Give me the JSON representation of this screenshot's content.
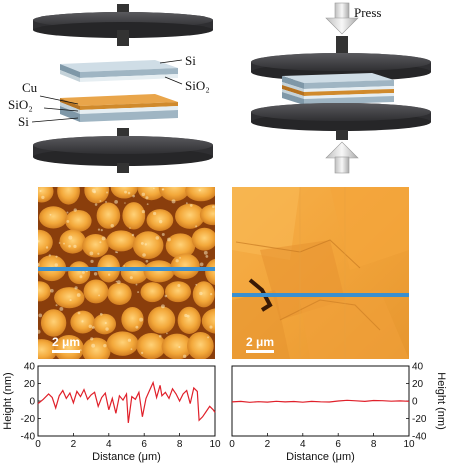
{
  "diagram": {
    "press_label": "Press",
    "labels_top_stack": {
      "si": "Si",
      "sio2": "SiO₂"
    },
    "labels_bottom_stack": {
      "cu": "Cu",
      "sio2": "SiO₂",
      "si": "Si"
    },
    "colors": {
      "plate": "#3a3a3c",
      "si": "#9fb5c3",
      "sio2": "#e6eef2",
      "cu": "#d08a2c"
    }
  },
  "afm": {
    "left_scale_bar": "2 μm",
    "right_scale_bar": "2 μm",
    "line_color": "#3a8fd0"
  },
  "chart_data": [
    {
      "type": "line",
      "xlabel": "Distance (μm)",
      "ylabel": "Height (nm)",
      "xlim": [
        0,
        10
      ],
      "ylim": [
        -40,
        40
      ],
      "xticks": [
        0,
        2,
        4,
        6,
        8,
        10
      ],
      "yticks": [
        40,
        20,
        0,
        -20,
        -40
      ],
      "yaxis_side": "left",
      "series": [
        {
          "color": "#e0202a",
          "x": [
            0,
            0.3,
            0.6,
            0.8,
            1.0,
            1.2,
            1.4,
            1.6,
            1.8,
            2.0,
            2.2,
            2.4,
            2.6,
            2.8,
            3.0,
            3.2,
            3.4,
            3.6,
            3.8,
            4.0,
            4.2,
            4.4,
            4.6,
            4.8,
            5.0,
            5.1,
            5.3,
            5.5,
            5.7,
            5.9,
            6.1,
            6.3,
            6.5,
            6.7,
            6.9,
            7.0,
            7.2,
            7.4,
            7.6,
            7.8,
            8.0,
            8.2,
            8.4,
            8.6,
            8.8,
            9.0,
            9.1,
            9.3,
            9.5,
            9.7,
            9.9,
            10.0
          ],
          "y": [
            -3,
            2,
            8,
            4,
            -8,
            6,
            12,
            3,
            9,
            -2,
            11,
            5,
            13,
            2,
            7,
            10,
            -6,
            4,
            9,
            -10,
            3,
            -14,
            6,
            1,
            8,
            -25,
            5,
            2,
            10,
            -18,
            3,
            12,
            21,
            4,
            18,
            6,
            10,
            3,
            14,
            8,
            0,
            8,
            12,
            -3,
            15,
            11,
            -22,
            -18,
            -12,
            -6,
            -10,
            -13
          ]
        }
      ]
    },
    {
      "type": "line",
      "xlabel": "Distance (μm)",
      "ylabel": "Height (nm)",
      "xlim": [
        0,
        10
      ],
      "ylim": [
        -40,
        40
      ],
      "xticks": [
        0,
        2,
        4,
        6,
        8,
        10
      ],
      "yticks": [
        40,
        20,
        0,
        -20,
        -40
      ],
      "yaxis_side": "right",
      "series": [
        {
          "color": "#e0202a",
          "x": [
            0,
            0.5,
            1,
            1.5,
            2,
            2.5,
            3,
            3.5,
            4,
            4.5,
            5,
            5.5,
            6,
            6.5,
            7,
            7.5,
            8,
            8.5,
            9,
            9.5,
            10
          ],
          "y": [
            -1,
            -0.5,
            -1.5,
            -0.8,
            -1.2,
            -0.3,
            -1,
            -0.6,
            -1.4,
            -0.5,
            -0.9,
            -1.1,
            0,
            0.8,
            0.2,
            -0.4,
            0.6,
            0.3,
            -0.2,
            0.1,
            -0.3
          ]
        }
      ]
    }
  ]
}
